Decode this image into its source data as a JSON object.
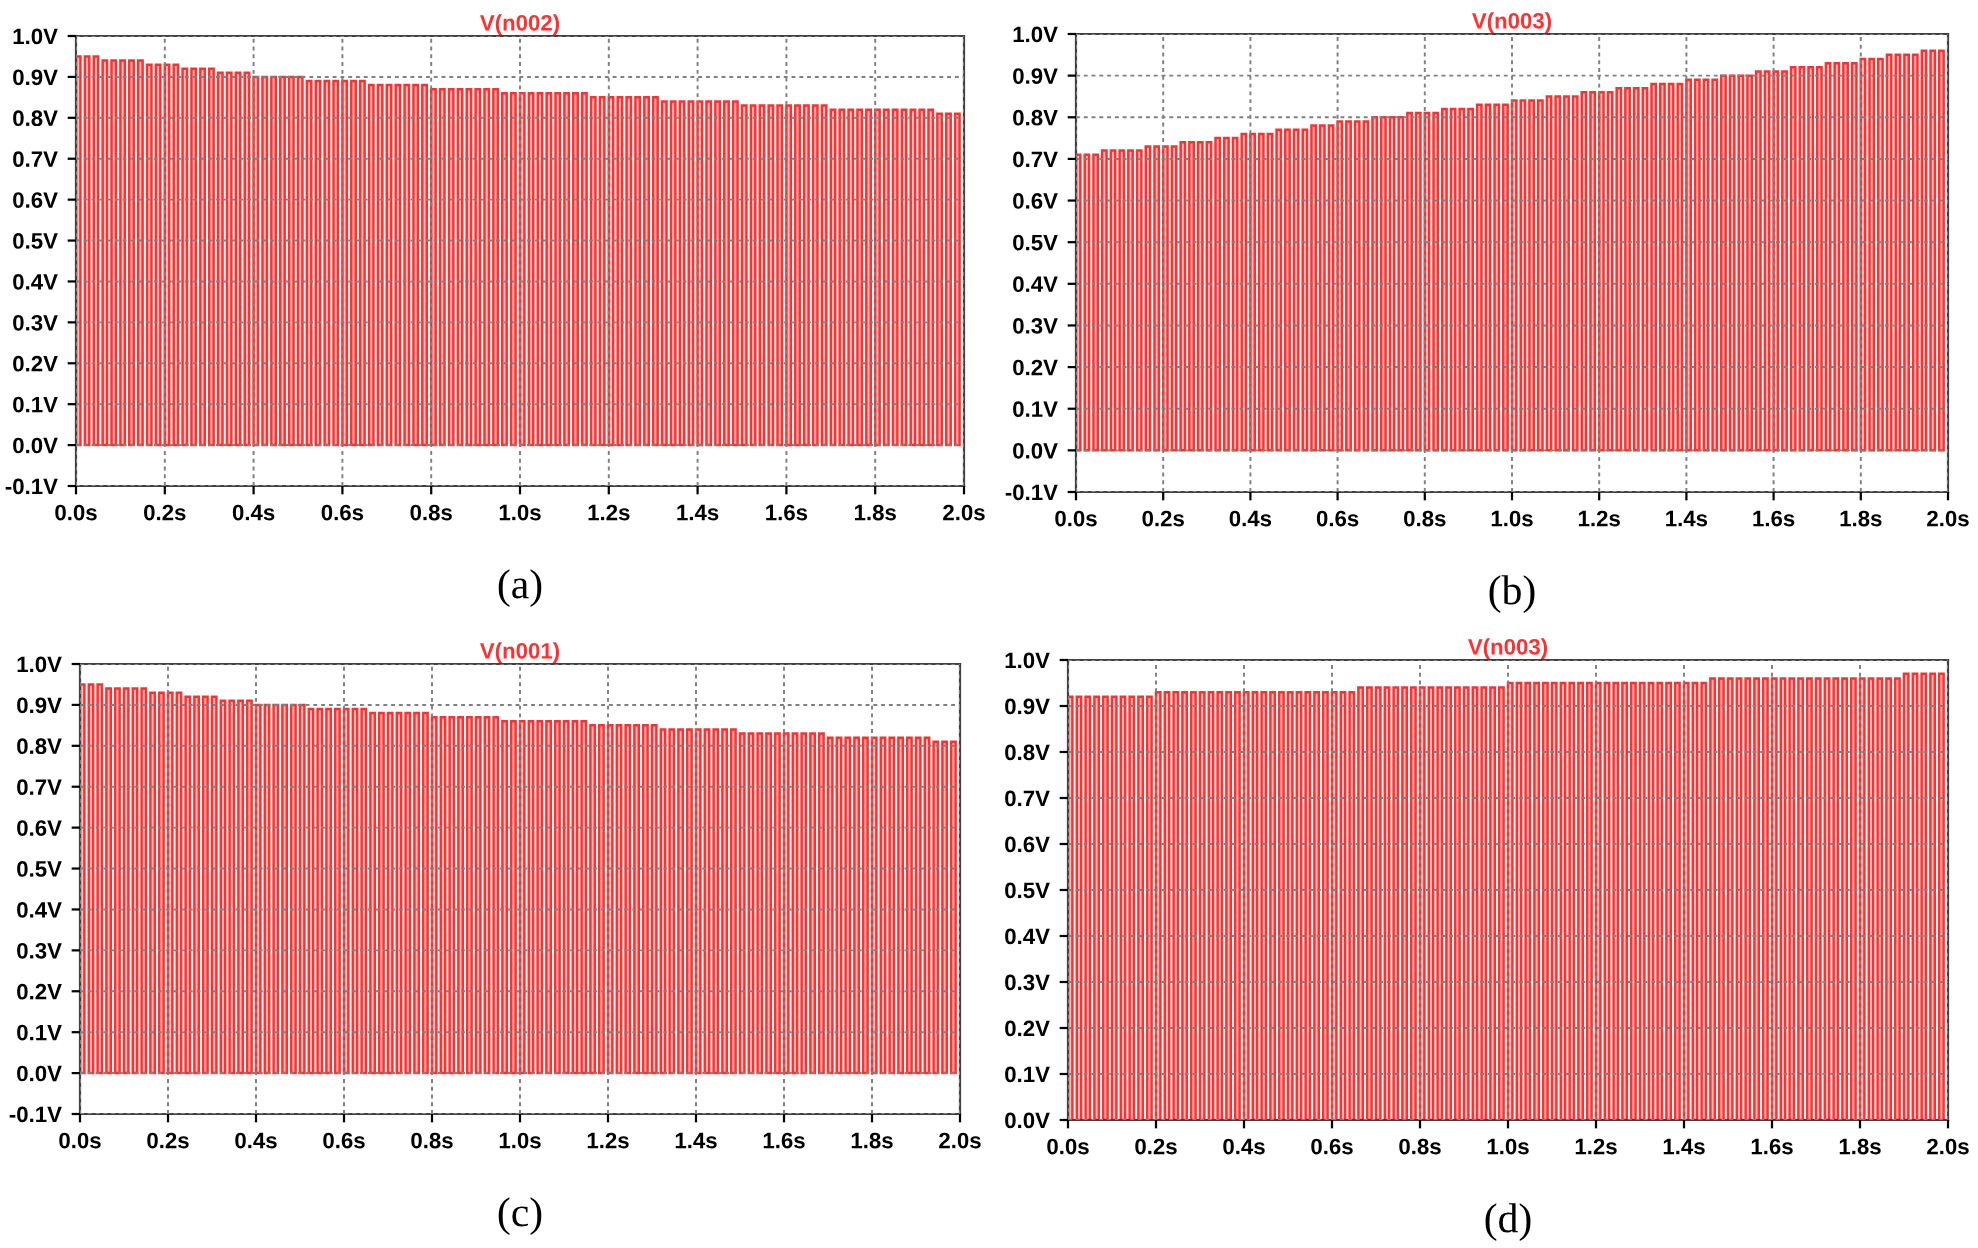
{
  "chart_data": [
    {
      "type": "bar",
      "title": "V(n002)",
      "xlabel": "(a)",
      "color": "#ff3030",
      "grid": true,
      "x": [
        0,
        0.02,
        0.04,
        0.06,
        0.08,
        0.1,
        0.12,
        0.14,
        0.16,
        0.18,
        0.2,
        0.22,
        0.24,
        0.26,
        0.28,
        0.3,
        0.32,
        0.34,
        0.36,
        0.38,
        0.4,
        0.42,
        0.44,
        0.46,
        0.48,
        0.5,
        0.52,
        0.54,
        0.56,
        0.58,
        0.6,
        0.62,
        0.64,
        0.66,
        0.68,
        0.7,
        0.72,
        0.74,
        0.76,
        0.78,
        0.8,
        0.82,
        0.84,
        0.86,
        0.88,
        0.9,
        0.92,
        0.94,
        0.96,
        0.98,
        1.0,
        1.02,
        1.04,
        1.06,
        1.08,
        1.1,
        1.12,
        1.14,
        1.16,
        1.18,
        1.2,
        1.22,
        1.24,
        1.26,
        1.28,
        1.3,
        1.32,
        1.34,
        1.36,
        1.38,
        1.4,
        1.42,
        1.44,
        1.46,
        1.48,
        1.5,
        1.52,
        1.54,
        1.56,
        1.58,
        1.6,
        1.62,
        1.64,
        1.66,
        1.68,
        1.7,
        1.72,
        1.74,
        1.76,
        1.78,
        1.8,
        1.82,
        1.84,
        1.86,
        1.88,
        1.9,
        1.92,
        1.94,
        1.96,
        1.98
      ],
      "values": [
        0.95,
        0.95,
        0.95,
        0.94,
        0.94,
        0.94,
        0.94,
        0.94,
        0.93,
        0.93,
        0.93,
        0.93,
        0.92,
        0.92,
        0.92,
        0.92,
        0.91,
        0.91,
        0.91,
        0.91,
        0.9,
        0.9,
        0.9,
        0.9,
        0.9,
        0.9,
        0.89,
        0.89,
        0.89,
        0.89,
        0.89,
        0.89,
        0.89,
        0.88,
        0.88,
        0.88,
        0.88,
        0.88,
        0.88,
        0.88,
        0.87,
        0.87,
        0.87,
        0.87,
        0.87,
        0.87,
        0.87,
        0.87,
        0.86,
        0.86,
        0.86,
        0.86,
        0.86,
        0.86,
        0.86,
        0.86,
        0.86,
        0.86,
        0.85,
        0.85,
        0.85,
        0.85,
        0.85,
        0.85,
        0.85,
        0.85,
        0.84,
        0.84,
        0.84,
        0.84,
        0.84,
        0.84,
        0.84,
        0.84,
        0.84,
        0.83,
        0.83,
        0.83,
        0.83,
        0.83,
        0.83,
        0.83,
        0.83,
        0.83,
        0.83,
        0.82,
        0.82,
        0.82,
        0.82,
        0.82,
        0.82,
        0.82,
        0.82,
        0.82,
        0.82,
        0.82,
        0.82,
        0.81,
        0.81,
        0.81
      ],
      "xlim": [
        0,
        2.0
      ],
      "xticks": [
        {
          "value": 0,
          "label": "0.0s"
        },
        {
          "value": 0.2,
          "label": "0.2s"
        },
        {
          "value": 0.4,
          "label": "0.4s"
        },
        {
          "value": 0.6,
          "label": "0.6s"
        },
        {
          "value": 0.8,
          "label": "0.8s"
        },
        {
          "value": 1.0,
          "label": "1.0s"
        },
        {
          "value": 1.2,
          "label": "1.2s"
        },
        {
          "value": 1.4,
          "label": "1.4s"
        },
        {
          "value": 1.6,
          "label": "1.6s"
        },
        {
          "value": 1.8,
          "label": "1.8s"
        },
        {
          "value": 2.0,
          "label": "2.0s"
        }
      ],
      "ylim": [
        -0.1,
        1.0
      ],
      "yticks": [
        {
          "value": -0.1,
          "label": "-0.1V"
        },
        {
          "value": 0,
          "label": "0.0V"
        },
        {
          "value": 0.1,
          "label": "0.1V"
        },
        {
          "value": 0.2,
          "label": "0.2V"
        },
        {
          "value": 0.3,
          "label": "0.3V"
        },
        {
          "value": 0.4,
          "label": "0.4V"
        },
        {
          "value": 0.5,
          "label": "0.5V"
        },
        {
          "value": 0.6,
          "label": "0.6V"
        },
        {
          "value": 0.7,
          "label": "0.7V"
        },
        {
          "value": 0.8,
          "label": "0.8V"
        },
        {
          "value": 0.9,
          "label": "0.9V"
        },
        {
          "value": 1.0,
          "label": "1.0V"
        }
      ]
    },
    {
      "type": "bar",
      "title": "V(n003)",
      "xlabel": "(b)",
      "color": "#ff3030",
      "grid": true,
      "x": [
        0,
        0.02,
        0.04,
        0.06,
        0.08,
        0.1,
        0.12,
        0.14,
        0.16,
        0.18,
        0.2,
        0.22,
        0.24,
        0.26,
        0.28,
        0.3,
        0.32,
        0.34,
        0.36,
        0.38,
        0.4,
        0.42,
        0.44,
        0.46,
        0.48,
        0.5,
        0.52,
        0.54,
        0.56,
        0.58,
        0.6,
        0.62,
        0.64,
        0.66,
        0.68,
        0.7,
        0.72,
        0.74,
        0.76,
        0.78,
        0.8,
        0.82,
        0.84,
        0.86,
        0.88,
        0.9,
        0.92,
        0.94,
        0.96,
        0.98,
        1.0,
        1.02,
        1.04,
        1.06,
        1.08,
        1.1,
        1.12,
        1.14,
        1.16,
        1.18,
        1.2,
        1.22,
        1.24,
        1.26,
        1.28,
        1.3,
        1.32,
        1.34,
        1.36,
        1.38,
        1.4,
        1.42,
        1.44,
        1.46,
        1.48,
        1.5,
        1.52,
        1.54,
        1.56,
        1.58,
        1.6,
        1.62,
        1.64,
        1.66,
        1.68,
        1.7,
        1.72,
        1.74,
        1.76,
        1.78,
        1.8,
        1.82,
        1.84,
        1.86,
        1.88,
        1.9,
        1.92,
        1.94,
        1.96,
        1.98
      ],
      "values": [
        0.71,
        0.71,
        0.71,
        0.72,
        0.72,
        0.72,
        0.72,
        0.72,
        0.73,
        0.73,
        0.73,
        0.73,
        0.74,
        0.74,
        0.74,
        0.74,
        0.75,
        0.75,
        0.75,
        0.76,
        0.76,
        0.76,
        0.76,
        0.77,
        0.77,
        0.77,
        0.77,
        0.78,
        0.78,
        0.78,
        0.79,
        0.79,
        0.79,
        0.79,
        0.8,
        0.8,
        0.8,
        0.8,
        0.81,
        0.81,
        0.81,
        0.81,
        0.82,
        0.82,
        0.82,
        0.82,
        0.83,
        0.83,
        0.83,
        0.83,
        0.84,
        0.84,
        0.84,
        0.84,
        0.85,
        0.85,
        0.85,
        0.85,
        0.86,
        0.86,
        0.86,
        0.86,
        0.87,
        0.87,
        0.87,
        0.87,
        0.88,
        0.88,
        0.88,
        0.88,
        0.89,
        0.89,
        0.89,
        0.89,
        0.9,
        0.9,
        0.9,
        0.9,
        0.91,
        0.91,
        0.91,
        0.91,
        0.92,
        0.92,
        0.92,
        0.92,
        0.93,
        0.93,
        0.93,
        0.93,
        0.94,
        0.94,
        0.94,
        0.95,
        0.95,
        0.95,
        0.95,
        0.96,
        0.96,
        0.96
      ],
      "xlim": [
        0,
        2.0
      ],
      "xticks": [
        {
          "value": 0,
          "label": "0.0s"
        },
        {
          "value": 0.2,
          "label": "0.2s"
        },
        {
          "value": 0.4,
          "label": "0.4s"
        },
        {
          "value": 0.6,
          "label": "0.6s"
        },
        {
          "value": 0.8,
          "label": "0.8s"
        },
        {
          "value": 1.0,
          "label": "1.0s"
        },
        {
          "value": 1.2,
          "label": "1.2s"
        },
        {
          "value": 1.4,
          "label": "1.4s"
        },
        {
          "value": 1.6,
          "label": "1.6s"
        },
        {
          "value": 1.8,
          "label": "1.8s"
        },
        {
          "value": 2.0,
          "label": "2.0s"
        }
      ],
      "ylim": [
        -0.1,
        1.0
      ],
      "yticks": [
        {
          "value": -0.1,
          "label": "-0.1V"
        },
        {
          "value": 0,
          "label": "0.0V"
        },
        {
          "value": 0.1,
          "label": "0.1V"
        },
        {
          "value": 0.2,
          "label": "0.2V"
        },
        {
          "value": 0.3,
          "label": "0.3V"
        },
        {
          "value": 0.4,
          "label": "0.4V"
        },
        {
          "value": 0.5,
          "label": "0.5V"
        },
        {
          "value": 0.6,
          "label": "0.6V"
        },
        {
          "value": 0.7,
          "label": "0.7V"
        },
        {
          "value": 0.8,
          "label": "0.8V"
        },
        {
          "value": 0.9,
          "label": "0.9V"
        },
        {
          "value": 1.0,
          "label": "1.0V"
        }
      ]
    },
    {
      "type": "bar",
      "title": "V(n001)",
      "xlabel": "(c)",
      "color": "#ff3030",
      "grid": true,
      "x": [
        0,
        0.02,
        0.04,
        0.06,
        0.08,
        0.1,
        0.12,
        0.14,
        0.16,
        0.18,
        0.2,
        0.22,
        0.24,
        0.26,
        0.28,
        0.3,
        0.32,
        0.34,
        0.36,
        0.38,
        0.4,
        0.42,
        0.44,
        0.46,
        0.48,
        0.5,
        0.52,
        0.54,
        0.56,
        0.58,
        0.6,
        0.62,
        0.64,
        0.66,
        0.68,
        0.7,
        0.72,
        0.74,
        0.76,
        0.78,
        0.8,
        0.82,
        0.84,
        0.86,
        0.88,
        0.9,
        0.92,
        0.94,
        0.96,
        0.98,
        1.0,
        1.02,
        1.04,
        1.06,
        1.08,
        1.1,
        1.12,
        1.14,
        1.16,
        1.18,
        1.2,
        1.22,
        1.24,
        1.26,
        1.28,
        1.3,
        1.32,
        1.34,
        1.36,
        1.38,
        1.4,
        1.42,
        1.44,
        1.46,
        1.48,
        1.5,
        1.52,
        1.54,
        1.56,
        1.58,
        1.6,
        1.62,
        1.64,
        1.66,
        1.68,
        1.7,
        1.72,
        1.74,
        1.76,
        1.78,
        1.8,
        1.82,
        1.84,
        1.86,
        1.88,
        1.9,
        1.92,
        1.94,
        1.96,
        1.98
      ],
      "values": [
        0.95,
        0.95,
        0.95,
        0.94,
        0.94,
        0.94,
        0.94,
        0.94,
        0.93,
        0.93,
        0.93,
        0.93,
        0.92,
        0.92,
        0.92,
        0.92,
        0.91,
        0.91,
        0.91,
        0.91,
        0.9,
        0.9,
        0.9,
        0.9,
        0.9,
        0.9,
        0.89,
        0.89,
        0.89,
        0.89,
        0.89,
        0.89,
        0.89,
        0.88,
        0.88,
        0.88,
        0.88,
        0.88,
        0.88,
        0.88,
        0.87,
        0.87,
        0.87,
        0.87,
        0.87,
        0.87,
        0.87,
        0.87,
        0.86,
        0.86,
        0.86,
        0.86,
        0.86,
        0.86,
        0.86,
        0.86,
        0.86,
        0.86,
        0.85,
        0.85,
        0.85,
        0.85,
        0.85,
        0.85,
        0.85,
        0.85,
        0.84,
        0.84,
        0.84,
        0.84,
        0.84,
        0.84,
        0.84,
        0.84,
        0.84,
        0.83,
        0.83,
        0.83,
        0.83,
        0.83,
        0.83,
        0.83,
        0.83,
        0.83,
        0.83,
        0.82,
        0.82,
        0.82,
        0.82,
        0.82,
        0.82,
        0.82,
        0.82,
        0.82,
        0.82,
        0.82,
        0.82,
        0.81,
        0.81,
        0.81
      ],
      "xlim": [
        0,
        2.0
      ],
      "xticks": [
        {
          "value": 0,
          "label": "0.0s"
        },
        {
          "value": 0.2,
          "label": "0.2s"
        },
        {
          "value": 0.4,
          "label": "0.4s"
        },
        {
          "value": 0.6,
          "label": "0.6s"
        },
        {
          "value": 0.8,
          "label": "0.8s"
        },
        {
          "value": 1.0,
          "label": "1.0s"
        },
        {
          "value": 1.2,
          "label": "1.2s"
        },
        {
          "value": 1.4,
          "label": "1.4s"
        },
        {
          "value": 1.6,
          "label": "1.6s"
        },
        {
          "value": 1.8,
          "label": "1.8s"
        },
        {
          "value": 2.0,
          "label": "2.0s"
        }
      ],
      "ylim": [
        -0.1,
        1.0
      ],
      "yticks": [
        {
          "value": -0.1,
          "label": "-0.1V"
        },
        {
          "value": 0,
          "label": "0.0V"
        },
        {
          "value": 0.1,
          "label": "0.1V"
        },
        {
          "value": 0.2,
          "label": "0.2V"
        },
        {
          "value": 0.3,
          "label": "0.3V"
        },
        {
          "value": 0.4,
          "label": "0.4V"
        },
        {
          "value": 0.5,
          "label": "0.5V"
        },
        {
          "value": 0.6,
          "label": "0.6V"
        },
        {
          "value": 0.7,
          "label": "0.7V"
        },
        {
          "value": 0.8,
          "label": "0.8V"
        },
        {
          "value": 0.9,
          "label": "0.9V"
        },
        {
          "value": 1.0,
          "label": "1.0V"
        }
      ]
    },
    {
      "type": "bar",
      "title": "V(n003)",
      "xlabel": "(d)",
      "color": "#ff3030",
      "grid": true,
      "x": [
        0,
        0.02,
        0.04,
        0.06,
        0.08,
        0.1,
        0.12,
        0.14,
        0.16,
        0.18,
        0.2,
        0.22,
        0.24,
        0.26,
        0.28,
        0.3,
        0.32,
        0.34,
        0.36,
        0.38,
        0.4,
        0.42,
        0.44,
        0.46,
        0.48,
        0.5,
        0.52,
        0.54,
        0.56,
        0.58,
        0.6,
        0.62,
        0.64,
        0.66,
        0.68,
        0.7,
        0.72,
        0.74,
        0.76,
        0.78,
        0.8,
        0.82,
        0.84,
        0.86,
        0.88,
        0.9,
        0.92,
        0.94,
        0.96,
        0.98,
        1.0,
        1.02,
        1.04,
        1.06,
        1.08,
        1.1,
        1.12,
        1.14,
        1.16,
        1.18,
        1.2,
        1.22,
        1.24,
        1.26,
        1.28,
        1.3,
        1.32,
        1.34,
        1.36,
        1.38,
        1.4,
        1.42,
        1.44,
        1.46,
        1.48,
        1.5,
        1.52,
        1.54,
        1.56,
        1.58,
        1.6,
        1.62,
        1.64,
        1.66,
        1.68,
        1.7,
        1.72,
        1.74,
        1.76,
        1.78,
        1.8,
        1.82,
        1.84,
        1.86,
        1.88,
        1.9,
        1.92,
        1.94,
        1.96,
        1.98
      ],
      "values": [
        0.92,
        0.92,
        0.92,
        0.92,
        0.92,
        0.92,
        0.92,
        0.92,
        0.92,
        0.92,
        0.93,
        0.93,
        0.93,
        0.93,
        0.93,
        0.93,
        0.93,
        0.93,
        0.93,
        0.93,
        0.93,
        0.93,
        0.93,
        0.93,
        0.93,
        0.93,
        0.93,
        0.93,
        0.93,
        0.93,
        0.93,
        0.93,
        0.93,
        0.94,
        0.94,
        0.94,
        0.94,
        0.94,
        0.94,
        0.94,
        0.94,
        0.94,
        0.94,
        0.94,
        0.94,
        0.94,
        0.94,
        0.94,
        0.94,
        0.94,
        0.95,
        0.95,
        0.95,
        0.95,
        0.95,
        0.95,
        0.95,
        0.95,
        0.95,
        0.95,
        0.95,
        0.95,
        0.95,
        0.95,
        0.95,
        0.95,
        0.95,
        0.95,
        0.95,
        0.95,
        0.95,
        0.95,
        0.95,
        0.96,
        0.96,
        0.96,
        0.96,
        0.96,
        0.96,
        0.96,
        0.96,
        0.96,
        0.96,
        0.96,
        0.96,
        0.96,
        0.96,
        0.96,
        0.96,
        0.96,
        0.96,
        0.96,
        0.96,
        0.96,
        0.96,
        0.97,
        0.97,
        0.97,
        0.97,
        0.97
      ],
      "xlim": [
        0,
        2.0
      ],
      "xticks": [
        {
          "value": 0,
          "label": "0.0s"
        },
        {
          "value": 0.2,
          "label": "0.2s"
        },
        {
          "value": 0.4,
          "label": "0.4s"
        },
        {
          "value": 0.6,
          "label": "0.6s"
        },
        {
          "value": 0.8,
          "label": "0.8s"
        },
        {
          "value": 1.0,
          "label": "1.0s"
        },
        {
          "value": 1.2,
          "label": "1.2s"
        },
        {
          "value": 1.4,
          "label": "1.4s"
        },
        {
          "value": 1.6,
          "label": "1.6s"
        },
        {
          "value": 1.8,
          "label": "1.8s"
        },
        {
          "value": 2.0,
          "label": "2.0s"
        }
      ],
      "ylim": [
        0,
        1.0
      ],
      "yticks": [
        {
          "value": 0,
          "label": "0.0V"
        },
        {
          "value": 0.1,
          "label": "0.1V"
        },
        {
          "value": 0.2,
          "label": "0.2V"
        },
        {
          "value": 0.3,
          "label": "0.3V"
        },
        {
          "value": 0.4,
          "label": "0.4V"
        },
        {
          "value": 0.5,
          "label": "0.5V"
        },
        {
          "value": 0.6,
          "label": "0.6V"
        },
        {
          "value": 0.7,
          "label": "0.7V"
        },
        {
          "value": 0.8,
          "label": "0.8V"
        },
        {
          "value": 0.9,
          "label": "0.9V"
        },
        {
          "value": 1.0,
          "label": "1.0V"
        }
      ]
    }
  ]
}
